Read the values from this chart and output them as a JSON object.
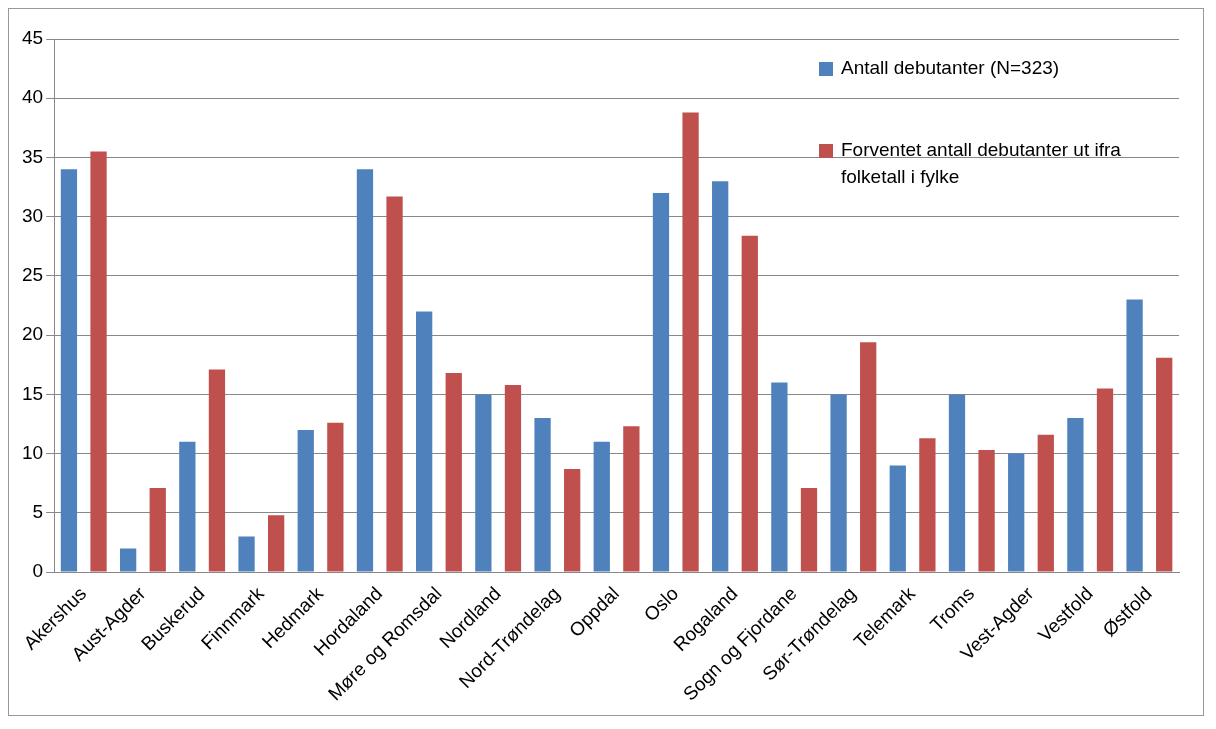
{
  "chart_data": {
    "type": "bar",
    "categories": [
      "Akershus",
      "Aust-Agder",
      "Buskerud",
      "Finnmark",
      "Hedmark",
      "Hordaland",
      "Møre og Romsdal",
      "Nordland",
      "Nord-Trøndelag",
      "Oppdal",
      "Oslo",
      "Rogaland",
      "Sogn og Fjordane",
      "Sør-Trøndelag",
      "Telemark",
      "Troms",
      "Vest-Agder",
      "Vestfold",
      "Østfold"
    ],
    "series": [
      {
        "name": "Antall debutanter (N=323)",
        "color": "#4f81bd",
        "values": [
          34,
          2,
          11,
          3,
          12,
          34,
          22,
          15,
          13,
          11,
          32,
          33,
          16,
          15,
          9,
          15,
          10,
          13,
          23
        ]
      },
      {
        "name": "Forventet antall debutanter ut ifra folketall i fylke",
        "color": "#c0504d",
        "values": [
          35.5,
          7.1,
          17.1,
          4.8,
          12.6,
          31.7,
          16.8,
          15.8,
          8.7,
          12.3,
          38.8,
          28.4,
          7.1,
          19.4,
          11.3,
          10.3,
          11.6,
          15.5,
          18.1
        ]
      }
    ],
    "ylim": [
      0,
      45
    ],
    "yticks": [
      0,
      5,
      10,
      15,
      20,
      25,
      30,
      35,
      40,
      45
    ],
    "grid": "y",
    "legend": "top right"
  }
}
